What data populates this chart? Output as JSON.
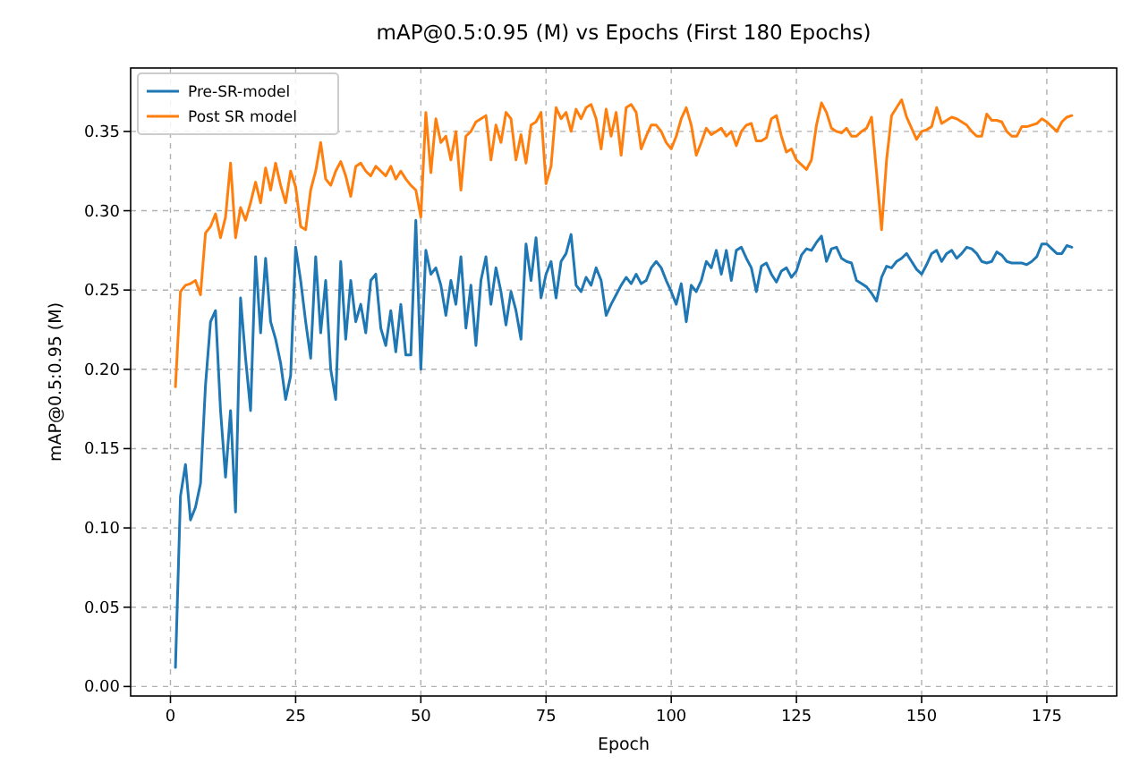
{
  "chart_data": {
    "type": "line",
    "title": "mAP@0.5:0.95 (M) vs Epochs (First 180 Epochs)",
    "xlabel": "Epoch",
    "ylabel": "mAP@0.5:0.95 (M)",
    "x": [
      1,
      2,
      3,
      4,
      5,
      6,
      7,
      8,
      9,
      10,
      11,
      12,
      13,
      14,
      15,
      16,
      17,
      18,
      19,
      20,
      21,
      22,
      23,
      24,
      25,
      26,
      27,
      28,
      29,
      30,
      31,
      32,
      33,
      34,
      35,
      36,
      37,
      38,
      39,
      40,
      41,
      42,
      43,
      44,
      45,
      46,
      47,
      48,
      49,
      50,
      51,
      52,
      53,
      54,
      55,
      56,
      57,
      58,
      59,
      60,
      61,
      62,
      63,
      64,
      65,
      66,
      67,
      68,
      69,
      70,
      71,
      72,
      73,
      74,
      75,
      76,
      77,
      78,
      79,
      80,
      81,
      82,
      83,
      84,
      85,
      86,
      87,
      88,
      89,
      90,
      91,
      92,
      93,
      94,
      95,
      96,
      97,
      98,
      99,
      100,
      101,
      102,
      103,
      104,
      105,
      106,
      107,
      108,
      109,
      110,
      111,
      112,
      113,
      114,
      115,
      116,
      117,
      118,
      119,
      120,
      121,
      122,
      123,
      124,
      125,
      126,
      127,
      128,
      129,
      130,
      131,
      132,
      133,
      134,
      135,
      136,
      137,
      138,
      139,
      140,
      141,
      142,
      143,
      144,
      145,
      146,
      147,
      148,
      149,
      150,
      151,
      152,
      153,
      154,
      155,
      156,
      157,
      158,
      159,
      160,
      161,
      162,
      163,
      164,
      165,
      166,
      167,
      168,
      169,
      170,
      171,
      172,
      173,
      174,
      175,
      176,
      177,
      178,
      179,
      180
    ],
    "series": [
      {
        "name": "Pre-SR-model",
        "color": "#1f77b4",
        "values": [
          0.012,
          0.12,
          0.14,
          0.105,
          0.113,
          0.128,
          0.19,
          0.23,
          0.237,
          0.174,
          0.132,
          0.174,
          0.11,
          0.245,
          0.207,
          0.174,
          0.271,
          0.223,
          0.27,
          0.23,
          0.219,
          0.204,
          0.181,
          0.196,
          0.277,
          0.256,
          0.23,
          0.207,
          0.271,
          0.223,
          0.256,
          0.2,
          0.181,
          0.268,
          0.219,
          0.256,
          0.23,
          0.241,
          0.223,
          0.256,
          0.26,
          0.226,
          0.215,
          0.237,
          0.211,
          0.241,
          0.209,
          0.209,
          0.294,
          0.2,
          0.275,
          0.26,
          0.264,
          0.253,
          0.234,
          0.256,
          0.241,
          0.271,
          0.226,
          0.253,
          0.215,
          0.256,
          0.271,
          0.241,
          0.264,
          0.249,
          0.228,
          0.249,
          0.237,
          0.219,
          0.279,
          0.256,
          0.283,
          0.245,
          0.26,
          0.268,
          0.245,
          0.268,
          0.273,
          0.285,
          0.253,
          0.249,
          0.258,
          0.253,
          0.264,
          0.256,
          0.234,
          0.241,
          0.247,
          0.253,
          0.258,
          0.254,
          0.26,
          0.254,
          0.256,
          0.264,
          0.268,
          0.264,
          0.256,
          0.249,
          0.241,
          0.254,
          0.23,
          0.253,
          0.249,
          0.256,
          0.268,
          0.264,
          0.275,
          0.26,
          0.275,
          0.256,
          0.275,
          0.277,
          0.27,
          0.264,
          0.249,
          0.265,
          0.267,
          0.26,
          0.255,
          0.262,
          0.264,
          0.258,
          0.262,
          0.272,
          0.276,
          0.275,
          0.28,
          0.284,
          0.268,
          0.276,
          0.277,
          0.27,
          0.268,
          0.267,
          0.256,
          0.254,
          0.252,
          0.248,
          0.243,
          0.258,
          0.265,
          0.264,
          0.268,
          0.27,
          0.273,
          0.268,
          0.263,
          0.26,
          0.266,
          0.273,
          0.275,
          0.268,
          0.273,
          0.275,
          0.27,
          0.273,
          0.277,
          0.276,
          0.273,
          0.268,
          0.267,
          0.268,
          0.274,
          0.272,
          0.268,
          0.267,
          0.267,
          0.267,
          0.266,
          0.268,
          0.271,
          0.279,
          0.279,
          0.276,
          0.273,
          0.273,
          0.278,
          0.277
        ]
      },
      {
        "name": "Post SR model",
        "color": "#ff7f0e",
        "values": [
          0.189,
          0.249,
          0.253,
          0.254,
          0.256,
          0.247,
          0.286,
          0.29,
          0.298,
          0.283,
          0.296,
          0.33,
          0.283,
          0.302,
          0.294,
          0.305,
          0.318,
          0.305,
          0.327,
          0.313,
          0.33,
          0.316,
          0.305,
          0.325,
          0.315,
          0.29,
          0.288,
          0.313,
          0.325,
          0.343,
          0.32,
          0.316,
          0.325,
          0.331,
          0.322,
          0.309,
          0.328,
          0.33,
          0.325,
          0.322,
          0.328,
          0.325,
          0.322,
          0.328,
          0.32,
          0.325,
          0.32,
          0.316,
          0.313,
          0.296,
          0.362,
          0.324,
          0.358,
          0.343,
          0.347,
          0.332,
          0.35,
          0.313,
          0.347,
          0.35,
          0.356,
          0.358,
          0.36,
          0.332,
          0.354,
          0.343,
          0.362,
          0.358,
          0.332,
          0.348,
          0.33,
          0.354,
          0.356,
          0.362,
          0.317,
          0.328,
          0.365,
          0.358,
          0.362,
          0.35,
          0.364,
          0.358,
          0.365,
          0.367,
          0.358,
          0.339,
          0.364,
          0.347,
          0.362,
          0.335,
          0.365,
          0.367,
          0.362,
          0.339,
          0.347,
          0.354,
          0.354,
          0.35,
          0.343,
          0.339,
          0.347,
          0.358,
          0.365,
          0.354,
          0.335,
          0.343,
          0.352,
          0.348,
          0.35,
          0.352,
          0.347,
          0.35,
          0.341,
          0.35,
          0.354,
          0.355,
          0.344,
          0.344,
          0.346,
          0.358,
          0.36,
          0.347,
          0.337,
          0.339,
          0.332,
          0.329,
          0.326,
          0.332,
          0.354,
          0.368,
          0.362,
          0.352,
          0.35,
          0.349,
          0.352,
          0.347,
          0.347,
          0.35,
          0.352,
          0.359,
          0.324,
          0.288,
          0.332,
          0.36,
          0.365,
          0.37,
          0.359,
          0.352,
          0.345,
          0.35,
          0.351,
          0.353,
          0.365,
          0.355,
          0.357,
          0.359,
          0.358,
          0.356,
          0.354,
          0.35,
          0.347,
          0.347,
          0.361,
          0.357,
          0.357,
          0.356,
          0.35,
          0.347,
          0.347,
          0.353,
          0.353,
          0.354,
          0.355,
          0.358,
          0.356,
          0.353,
          0.35,
          0.356,
          0.359,
          0.36
        ]
      }
    ],
    "xlim": [
      -7.95,
      188.95
    ],
    "ylim": [
      -0.006,
      0.39
    ],
    "xticks": [
      0,
      25,
      50,
      75,
      100,
      125,
      150,
      175
    ],
    "yticks": [
      {
        "value": 0,
        "label": "0.00"
      },
      {
        "value": 0.05,
        "label": "0.05"
      },
      {
        "value": 0.1,
        "label": "0.10"
      },
      {
        "value": 0.15,
        "label": "0.15"
      },
      {
        "value": 0.2,
        "label": "0.20"
      },
      {
        "value": 0.25,
        "label": "0.25"
      },
      {
        "value": 0.3,
        "label": "0.30"
      },
      {
        "value": 0.35,
        "label": "0.35"
      }
    ],
    "grid": true,
    "legend": "top left",
    "line_style": "solid",
    "marker": "none"
  }
}
